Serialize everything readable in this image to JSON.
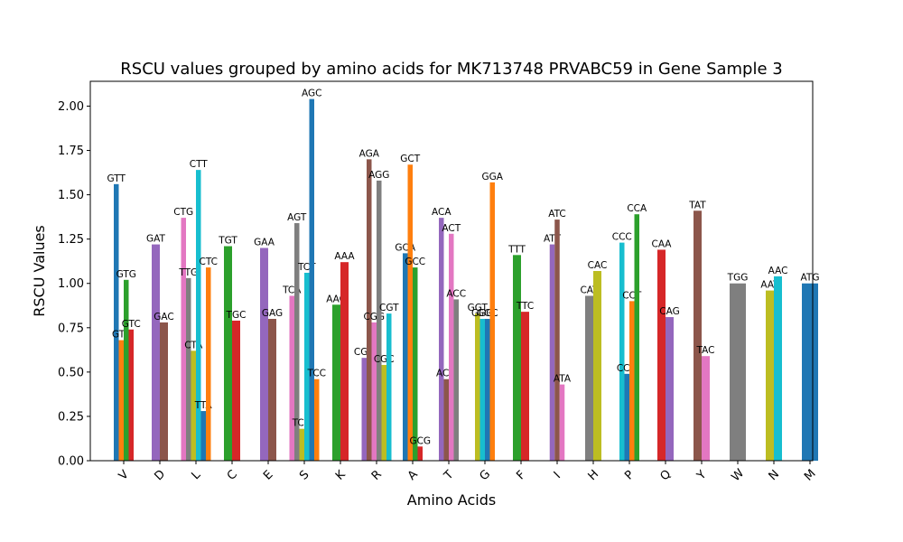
{
  "chart_data": {
    "type": "bar",
    "title": "RSCU values grouped by amino acids for MK713748 PRVABC59 in Gene Sample 3",
    "xlabel": "Amino Acids",
    "ylabel": "RSCU Values",
    "ylim": [
      0,
      2.14
    ],
    "yticks": [
      "0.00",
      "0.25",
      "0.50",
      "0.75",
      "1.00",
      "1.25",
      "1.50",
      "1.75",
      "2.00"
    ],
    "categories": [
      "V",
      "D",
      "L",
      "C",
      "E",
      "S",
      "K",
      "R",
      "A",
      "T",
      "G",
      "F",
      "I",
      "H",
      "P",
      "Q",
      "Y",
      "W",
      "N",
      "M"
    ],
    "colors": [
      "#1f77b4",
      "#ff7f0e",
      "#2ca02c",
      "#d62728",
      "#9467bd",
      "#8c564b",
      "#e377c2",
      "#7f7f7f",
      "#bcbd22",
      "#17becf"
    ],
    "grid": false,
    "groups": [
      {
        "aa": "V",
        "codons": [
          {
            "codon": "GTT",
            "value": 1.56,
            "color": "#1f77b4"
          },
          {
            "codon": "GTA",
            "value": 0.68,
            "color": "#ff7f0e"
          },
          {
            "codon": "GTG",
            "value": 1.02,
            "color": "#2ca02c"
          },
          {
            "codon": "GTC",
            "value": 0.74,
            "color": "#d62728"
          }
        ]
      },
      {
        "aa": "D",
        "codons": [
          {
            "codon": "GAT",
            "value": 1.22,
            "color": "#9467bd"
          },
          {
            "codon": "GAC",
            "value": 0.78,
            "color": "#8c564b"
          }
        ]
      },
      {
        "aa": "L",
        "codons": [
          {
            "codon": "CTG",
            "value": 1.37,
            "color": "#e377c2"
          },
          {
            "codon": "TTG",
            "value": 1.03,
            "color": "#7f7f7f"
          },
          {
            "codon": "CTA",
            "value": 0.62,
            "color": "#bcbd22"
          },
          {
            "codon": "CTT",
            "value": 1.64,
            "color": "#17becf"
          },
          {
            "codon": "TTA",
            "value": 0.28,
            "color": "#1f77b4"
          },
          {
            "codon": "CTC",
            "value": 1.09,
            "color": "#ff7f0e"
          }
        ]
      },
      {
        "aa": "C",
        "codons": [
          {
            "codon": "TGT",
            "value": 1.21,
            "color": "#2ca02c"
          },
          {
            "codon": "TGC",
            "value": 0.79,
            "color": "#d62728"
          }
        ]
      },
      {
        "aa": "E",
        "codons": [
          {
            "codon": "GAA",
            "value": 1.2,
            "color": "#9467bd"
          },
          {
            "codon": "GAG",
            "value": 0.8,
            "color": "#8c564b"
          }
        ]
      },
      {
        "aa": "S",
        "codons": [
          {
            "codon": "TCA",
            "value": 0.93,
            "color": "#e377c2"
          },
          {
            "codon": "AGT",
            "value": 1.34,
            "color": "#7f7f7f"
          },
          {
            "codon": "TCG",
            "value": 0.18,
            "color": "#bcbd22"
          },
          {
            "codon": "TCT",
            "value": 1.06,
            "color": "#17becf"
          },
          {
            "codon": "AGC",
            "value": 2.04,
            "color": "#1f77b4"
          },
          {
            "codon": "TCC",
            "value": 0.46,
            "color": "#ff7f0e"
          }
        ]
      },
      {
        "aa": "K",
        "codons": [
          {
            "codon": "AAG",
            "value": 0.88,
            "color": "#2ca02c"
          },
          {
            "codon": "AAA",
            "value": 1.12,
            "color": "#d62728"
          }
        ]
      },
      {
        "aa": "R",
        "codons": [
          {
            "codon": "CGA",
            "value": 0.58,
            "color": "#9467bd"
          },
          {
            "codon": "AGA",
            "value": 1.7,
            "color": "#8c564b"
          },
          {
            "codon": "CGG",
            "value": 0.78,
            "color": "#e377c2"
          },
          {
            "codon": "AGG",
            "value": 1.58,
            "color": "#7f7f7f"
          },
          {
            "codon": "CGC",
            "value": 0.54,
            "color": "#bcbd22"
          },
          {
            "codon": "CGT",
            "value": 0.83,
            "color": "#17becf"
          }
        ]
      },
      {
        "aa": "A",
        "codons": [
          {
            "codon": "GCA",
            "value": 1.17,
            "color": "#1f77b4"
          },
          {
            "codon": "GCT",
            "value": 1.67,
            "color": "#ff7f0e"
          },
          {
            "codon": "GCC",
            "value": 1.09,
            "color": "#2ca02c"
          },
          {
            "codon": "GCG",
            "value": 0.08,
            "color": "#d62728"
          }
        ]
      },
      {
        "aa": "T",
        "codons": [
          {
            "codon": "ACA",
            "value": 1.37,
            "color": "#9467bd"
          },
          {
            "codon": "ACG",
            "value": 0.46,
            "color": "#8c564b"
          },
          {
            "codon": "ACT",
            "value": 1.28,
            "color": "#e377c2"
          },
          {
            "codon": "ACC",
            "value": 0.91,
            "color": "#7f7f7f"
          }
        ]
      },
      {
        "aa": "G",
        "codons": [
          {
            "codon": "GGT",
            "value": 0.83,
            "color": "#bcbd22"
          },
          {
            "codon": "GGG",
            "value": 0.8,
            "color": "#17becf"
          },
          {
            "codon": "GGC",
            "value": 0.8,
            "color": "#1f77b4"
          },
          {
            "codon": "GGA",
            "value": 1.57,
            "color": "#ff7f0e"
          }
        ]
      },
      {
        "aa": "F",
        "codons": [
          {
            "codon": "TTT",
            "value": 1.16,
            "color": "#2ca02c"
          },
          {
            "codon": "TTC",
            "value": 0.84,
            "color": "#d62728"
          }
        ]
      },
      {
        "aa": "I",
        "codons": [
          {
            "codon": "ATT",
            "value": 1.22,
            "color": "#9467bd"
          },
          {
            "codon": "ATC",
            "value": 1.36,
            "color": "#8c564b"
          },
          {
            "codon": "ATA",
            "value": 0.43,
            "color": "#e377c2"
          }
        ]
      },
      {
        "aa": "H",
        "codons": [
          {
            "codon": "CAT",
            "value": 0.93,
            "color": "#7f7f7f"
          },
          {
            "codon": "CAC",
            "value": 1.07,
            "color": "#bcbd22"
          }
        ]
      },
      {
        "aa": "P",
        "codons": [
          {
            "codon": "CCC",
            "value": 1.23,
            "color": "#17becf"
          },
          {
            "codon": "CCG",
            "value": 0.49,
            "color": "#1f77b4"
          },
          {
            "codon": "CCT",
            "value": 0.9,
            "color": "#ff7f0e"
          },
          {
            "codon": "CCA",
            "value": 1.39,
            "color": "#2ca02c"
          }
        ]
      },
      {
        "aa": "Q",
        "codons": [
          {
            "codon": "CAA",
            "value": 1.19,
            "color": "#d62728"
          },
          {
            "codon": "CAG",
            "value": 0.81,
            "color": "#9467bd"
          }
        ]
      },
      {
        "aa": "Y",
        "codons": [
          {
            "codon": "TAT",
            "value": 1.41,
            "color": "#8c564b"
          },
          {
            "codon": "TAC",
            "value": 0.59,
            "color": "#e377c2"
          }
        ]
      },
      {
        "aa": "W",
        "codons": [
          {
            "codon": "TGG",
            "value": 1.0,
            "color": "#7f7f7f"
          }
        ]
      },
      {
        "aa": "N",
        "codons": [
          {
            "codon": "AAT",
            "value": 0.96,
            "color": "#bcbd22"
          },
          {
            "codon": "AAC",
            "value": 1.04,
            "color": "#17becf"
          }
        ]
      },
      {
        "aa": "M",
        "codons": [
          {
            "codon": "ATG",
            "value": 1.0,
            "color": "#1f77b4"
          }
        ]
      }
    ]
  }
}
